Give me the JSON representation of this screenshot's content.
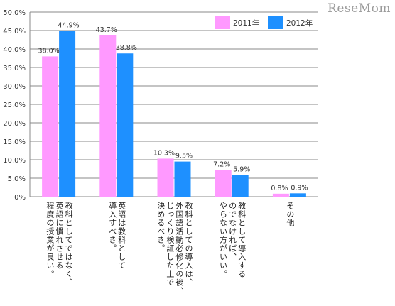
{
  "watermark": "ReseMom",
  "chart_data": {
    "type": "bar",
    "categories": [
      [
        "教科としてではなく、",
        "英語に慣れさせる",
        "程度の授業が良い。"
      ],
      [
        "英語は教科として",
        "導入すべき。"
      ],
      [
        "教科としての導入は、",
        "外国語活動必修化の後、",
        "じっくり検証した上で",
        "決めるべき。"
      ],
      [
        "教科として導入する",
        "のでなければ、",
        "やらない方がいい。"
      ],
      [
        "その他"
      ]
    ],
    "series": [
      {
        "name": "2011年",
        "color": "#ff99ff",
        "values": [
          38.0,
          43.7,
          10.3,
          7.2,
          0.8
        ]
      },
      {
        "name": "2012年",
        "color": "#1e90ff",
        "values": [
          44.9,
          38.8,
          9.5,
          5.9,
          0.9
        ]
      }
    ],
    "data_labels": [
      [
        "38.0%",
        "43.7%",
        "10.3%",
        "7.2%",
        "0.8%"
      ],
      [
        "44.9%",
        "38.8%",
        "9.5%",
        "5.9%",
        "0.9%"
      ]
    ],
    "yticks": [
      "0%",
      "5.0%",
      "10.0%",
      "15.0%",
      "20.0%",
      "25.0%",
      "30.0%",
      "35.0%",
      "40.0%",
      "45.0%",
      "50.0%"
    ],
    "ylim": [
      0,
      50
    ],
    "grid": true,
    "legend_position": "top-right"
  }
}
